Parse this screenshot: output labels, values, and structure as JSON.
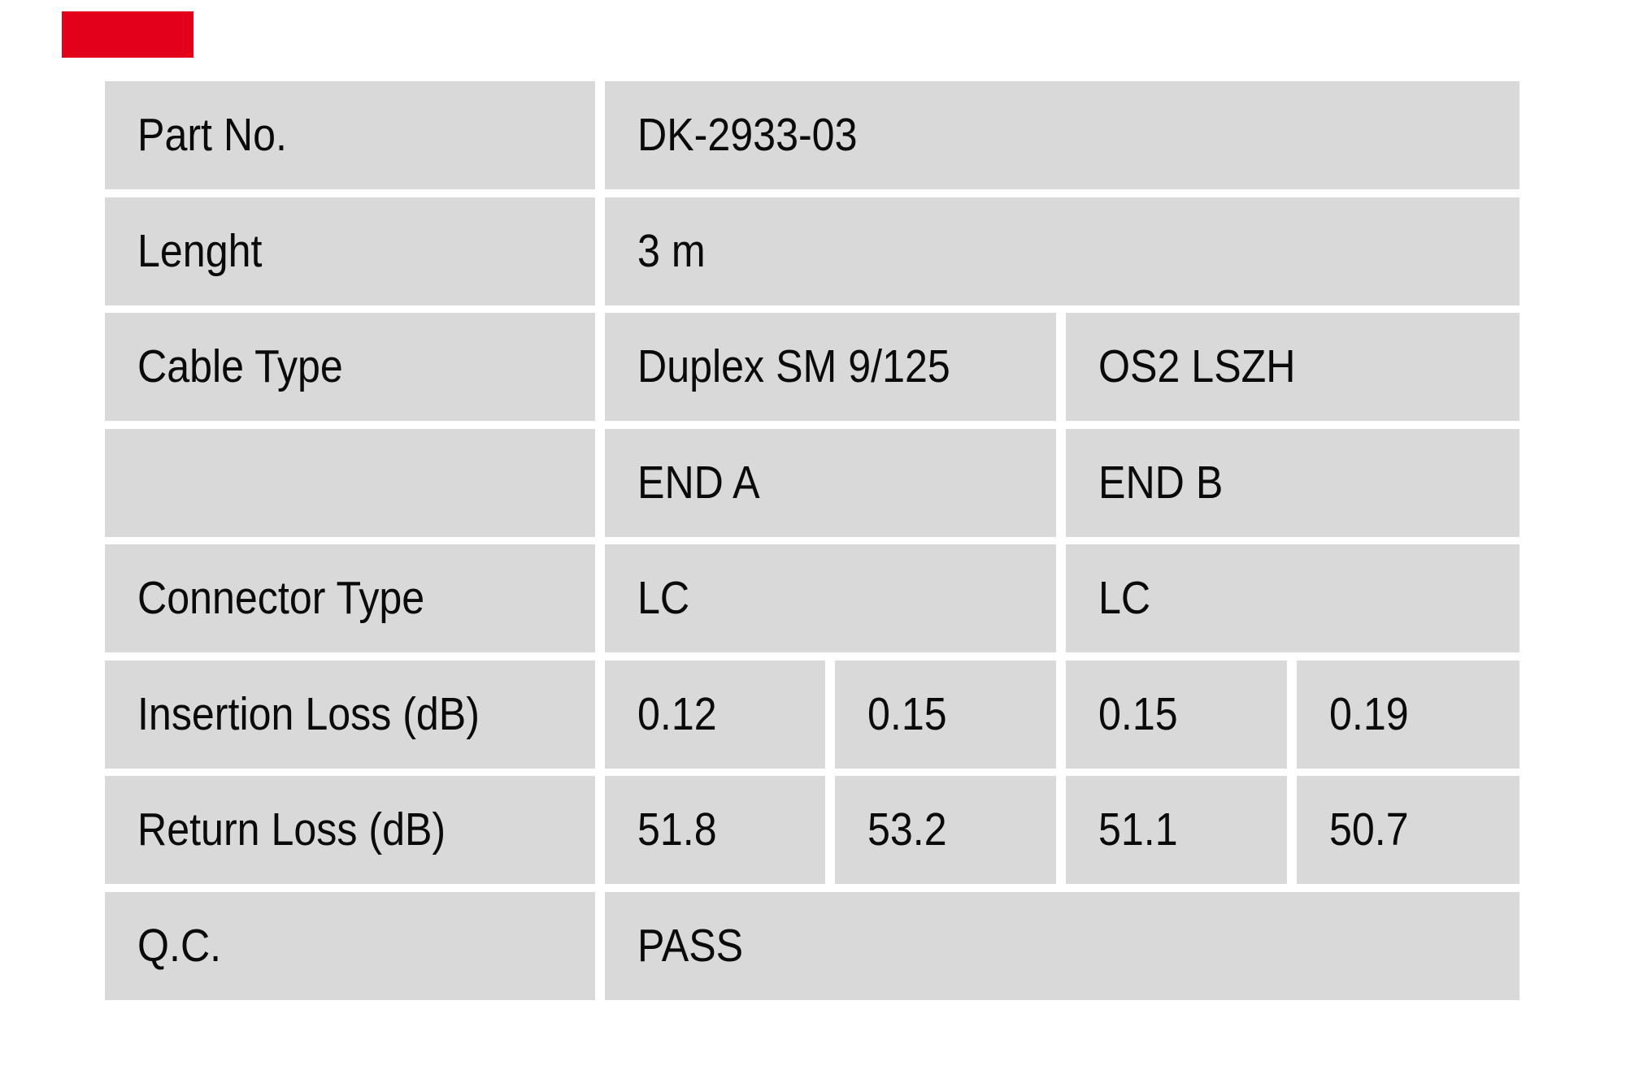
{
  "page": {
    "background": "#ffffff",
    "description": "Fiber optic patch cable QC test specification table"
  },
  "brand_mark": {
    "color": "#e2001a"
  },
  "table": {
    "cell_bg": "#d9d9d9",
    "text_color": "#0a0a0a",
    "rows": [
      {
        "label": "Part No.",
        "values": [
          {
            "text": "DK-2933-03",
            "span": 4
          }
        ]
      },
      {
        "label": "Lenght",
        "values": [
          {
            "text": "3 m",
            "span": 4
          }
        ]
      },
      {
        "label": "Cable Type",
        "values": [
          {
            "text": "Duplex SM 9/125",
            "span": 2
          },
          {
            "text": "OS2 LSZH",
            "span": 2
          }
        ]
      },
      {
        "label": "",
        "values": [
          {
            "text": "END A",
            "span": 2
          },
          {
            "text": "END B",
            "span": 2
          }
        ]
      },
      {
        "label": "Connector Type",
        "values": [
          {
            "text": "LC",
            "span": 2
          },
          {
            "text": "LC",
            "span": 2
          }
        ]
      },
      {
        "label": "Insertion Loss (dB)",
        "values": [
          {
            "text": "0.12",
            "span": 1
          },
          {
            "text": "0.15",
            "span": 1
          },
          {
            "text": "0.15",
            "span": 1
          },
          {
            "text": "0.19",
            "span": 1
          }
        ]
      },
      {
        "label": "Return Loss (dB)",
        "values": [
          {
            "text": "51.8",
            "span": 1
          },
          {
            "text": "53.2",
            "span": 1
          },
          {
            "text": "51.1",
            "span": 1
          },
          {
            "text": "50.7",
            "span": 1
          }
        ]
      },
      {
        "label": "Q.C.",
        "values": [
          {
            "text": "PASS",
            "span": 4
          }
        ]
      }
    ]
  }
}
